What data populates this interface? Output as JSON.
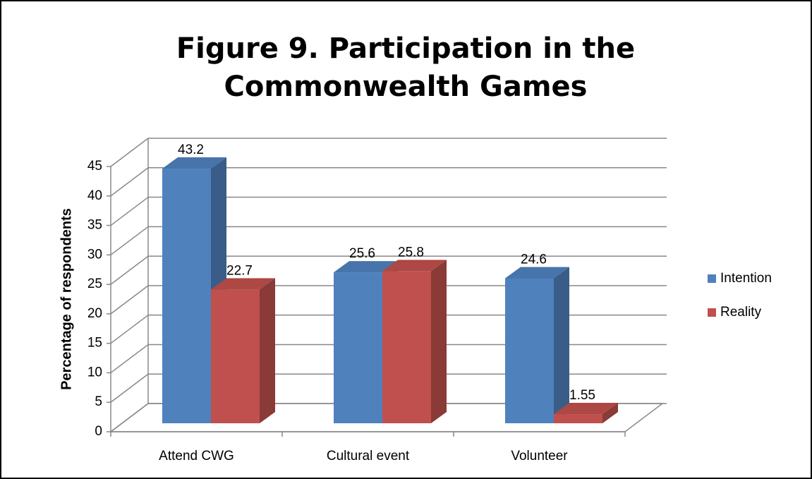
{
  "chart_data": {
    "type": "bar3d",
    "title": "Figure 9. Participation in the Commonwealth Games",
    "y_label": "Percentage of respondents",
    "categories": [
      "Attend CWG",
      "Cultural event",
      "Volunteer"
    ],
    "series": [
      {
        "name": "Intention",
        "color": "#4f81bd",
        "values": [
          43.2,
          25.6,
          24.6
        ]
      },
      {
        "name": "Reality",
        "color": "#c0504d",
        "values": [
          22.7,
          25.8,
          1.55
        ]
      }
    ],
    "ylim": [
      0,
      45
    ],
    "yticks": [
      0,
      5,
      10,
      15,
      20,
      25,
      30,
      35,
      40,
      45
    ],
    "grid": true,
    "legend": "right"
  }
}
